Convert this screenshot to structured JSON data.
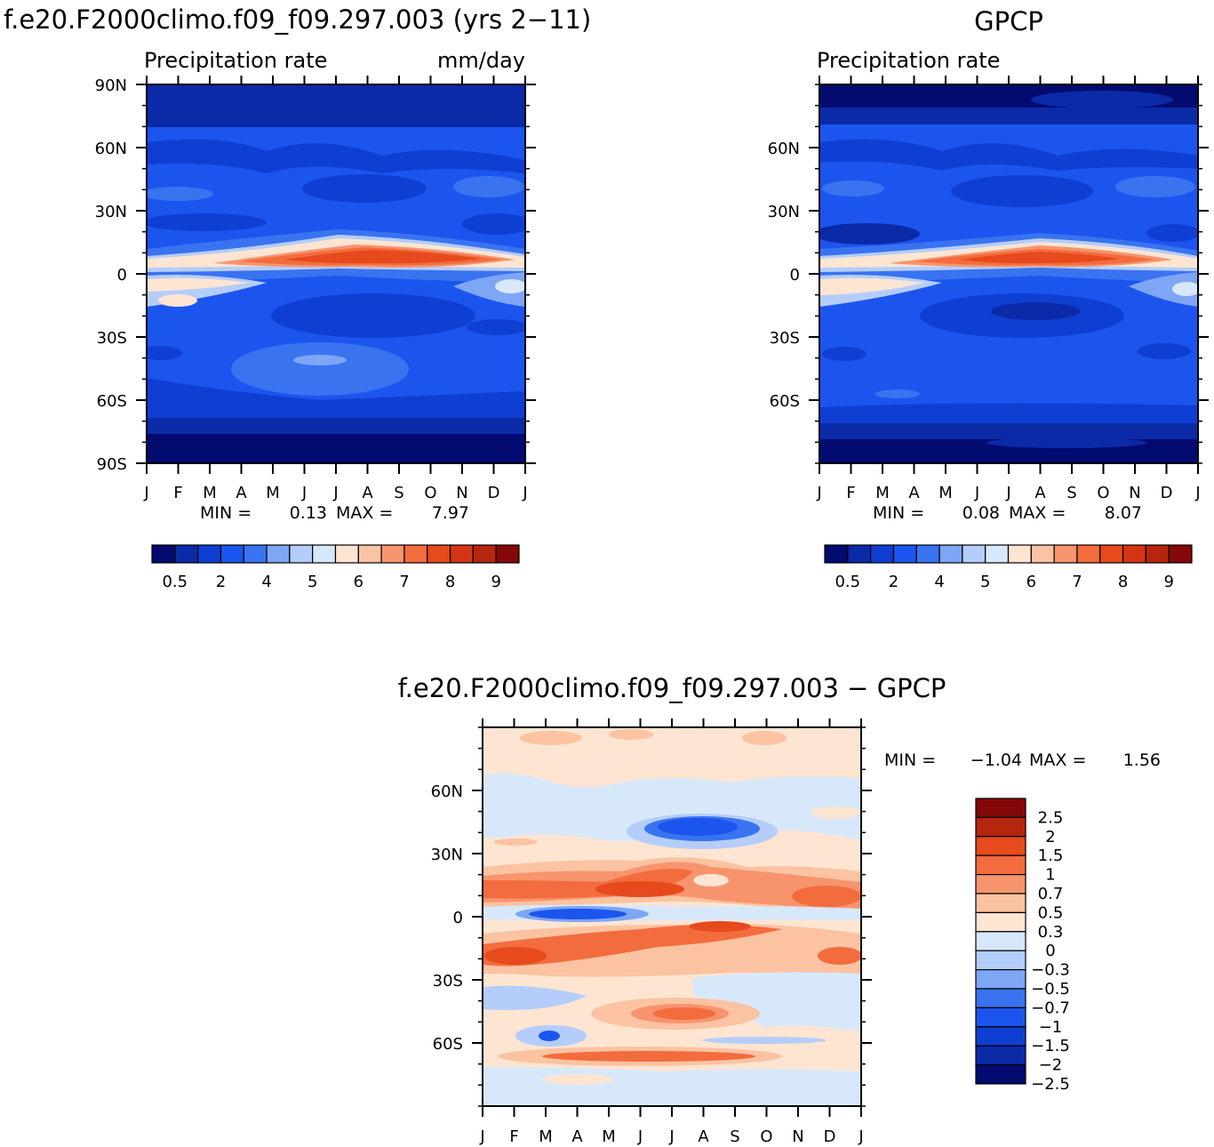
{
  "colors": {
    "model_palette": [
      "#030a70",
      "#0a2aa8",
      "#0f3fd2",
      "#1c55ee",
      "#3a73f0",
      "#7ea6f5",
      "#b4cdfa",
      "#d8e8fb",
      "#fde5d2",
      "#fbc3a2",
      "#f7946e",
      "#f36c3e",
      "#e64a1d",
      "#d43515",
      "#b6250e",
      "#850808"
    ],
    "diff_palette": [
      "#850808",
      "#b6250e",
      "#e64a1d",
      "#f36c3e",
      "#f7946e",
      "#fbc3a2",
      "#fde5d2",
      "#d8e8fb",
      "#b4cdfa",
      "#7ea6f5",
      "#3a73f0",
      "#1c55ee",
      "#0f3fd2",
      "#0a2aa8",
      "#030a70"
    ]
  },
  "chart_data": [
    {
      "id": "model",
      "type": "heatmap",
      "title": "f.e20.F2000climo.f09_f09.297.003 (yrs 2−11)",
      "subtitle_left": "Precipitation rate",
      "subtitle_right": "mm/day",
      "x_ticks": [
        "J",
        "F",
        "M",
        "A",
        "M",
        "J",
        "J",
        "A",
        "S",
        "O",
        "N",
        "D",
        "J"
      ],
      "y_ticks": [
        "90N",
        "60N",
        "30N",
        "0",
        "30S",
        "60S",
        "90S"
      ],
      "y_tick_values": [
        90,
        60,
        30,
        0,
        -30,
        -60,
        -90
      ],
      "ylim": [
        -90,
        90
      ],
      "min_label": "MIN =",
      "min_value": "0.13",
      "max_label": "MAX =",
      "max_value": "7.97",
      "colorbar_labels": [
        "0.5",
        "2",
        "4",
        "5",
        "6",
        "7",
        "8",
        "9"
      ]
    },
    {
      "id": "obs",
      "type": "heatmap",
      "title": "GPCP",
      "subtitle_left": "Precipitation rate",
      "subtitle_right": "",
      "x_ticks": [
        "J",
        "F",
        "M",
        "A",
        "M",
        "J",
        "J",
        "A",
        "S",
        "O",
        "N",
        "D",
        "J"
      ],
      "y_ticks": [
        "60N",
        "30N",
        "0",
        "30S",
        "60S"
      ],
      "y_tick_values": [
        60,
        30,
        0,
        -30,
        -60
      ],
      "ylim": [
        -90,
        90
      ],
      "min_label": "MIN =",
      "min_value": "0.08",
      "max_label": "MAX =",
      "max_value": "8.07",
      "colorbar_labels": [
        "0.5",
        "2",
        "4",
        "5",
        "6",
        "7",
        "8",
        "9"
      ]
    },
    {
      "id": "diff",
      "type": "heatmap",
      "title": "f.e20.F2000climo.f09_f09.297.003 − GPCP",
      "x_ticks": [
        "J",
        "F",
        "M",
        "A",
        "M",
        "J",
        "J",
        "A",
        "S",
        "O",
        "N",
        "D",
        "J"
      ],
      "y_ticks": [
        "60N",
        "30N",
        "0",
        "30S",
        "60S"
      ],
      "y_tick_values": [
        60,
        30,
        0,
        -30,
        -60
      ],
      "ylim": [
        -90,
        90
      ],
      "min_label": "MIN =",
      "min_value": "−1.04",
      "max_label": "MAX =",
      "max_value": "1.56",
      "colorbar_labels": [
        "2.5",
        "2",
        "1.5",
        "1",
        "0.7",
        "0.5",
        "0.3",
        "0",
        "−0.3",
        "−0.5",
        "−0.7",
        "−1",
        "−1.5",
        "−2",
        "−2.5"
      ]
    }
  ]
}
